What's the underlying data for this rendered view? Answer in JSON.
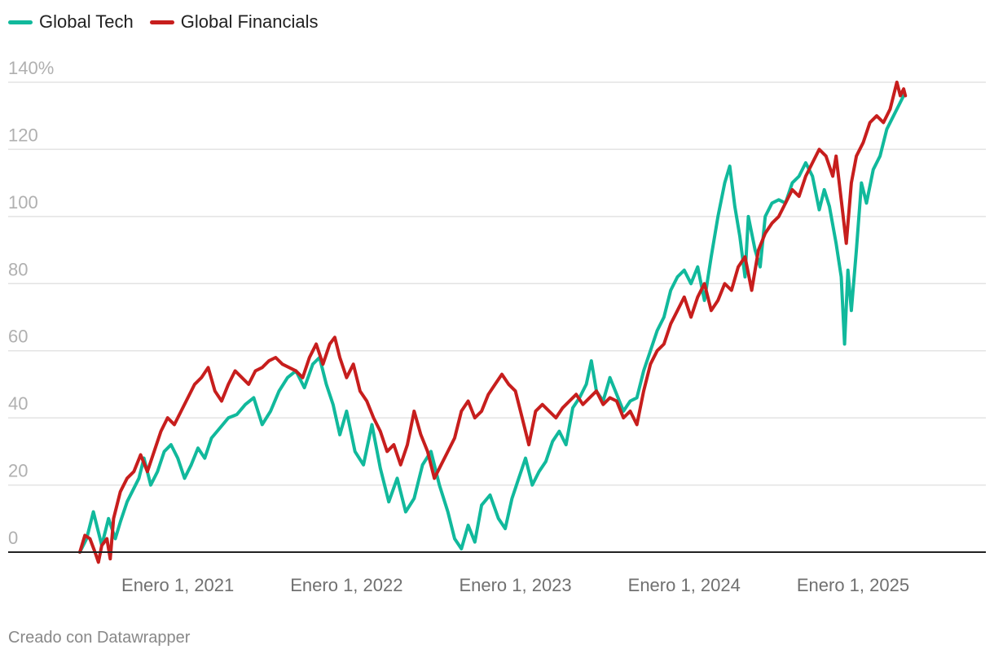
{
  "footer": {
    "credit": "Creado con Datawrapper"
  },
  "chart_data": {
    "type": "line",
    "title": "",
    "xlabel": "",
    "ylabel": "",
    "ylim": [
      0,
      140
    ],
    "y_ticks": [
      0,
      20,
      40,
      60,
      80,
      100,
      120,
      140
    ],
    "y_tick_labels": [
      "0",
      "20",
      "40",
      "60",
      "80",
      "100",
      "120",
      "140%"
    ],
    "x_domain": [
      2020.42,
      2025.7
    ],
    "x_ticks": [
      2021.0,
      2022.0,
      2023.0,
      2024.0,
      2025.0
    ],
    "x_tick_labels": [
      "Enero 1, 2021",
      "Enero 1, 2022",
      "Enero 1, 2023",
      "Enero 1, 2024",
      "Enero 1, 2025"
    ],
    "legend_position": "top-left",
    "grid": true,
    "series": [
      {
        "name": "Global Tech",
        "color": "#11b99c",
        "points": [
          [
            2020.42,
            0
          ],
          [
            2020.46,
            4
          ],
          [
            2020.5,
            12
          ],
          [
            2020.53,
            6
          ],
          [
            2020.55,
            2
          ],
          [
            2020.59,
            10
          ],
          [
            2020.63,
            4
          ],
          [
            2020.66,
            9
          ],
          [
            2020.7,
            15
          ],
          [
            2020.73,
            18
          ],
          [
            2020.77,
            22
          ],
          [
            2020.8,
            28
          ],
          [
            2020.84,
            20
          ],
          [
            2020.88,
            24
          ],
          [
            2020.92,
            30
          ],
          [
            2020.96,
            32
          ],
          [
            2021.0,
            28
          ],
          [
            2021.04,
            22
          ],
          [
            2021.08,
            26
          ],
          [
            2021.12,
            31
          ],
          [
            2021.16,
            28
          ],
          [
            2021.2,
            34
          ],
          [
            2021.25,
            37
          ],
          [
            2021.3,
            40
          ],
          [
            2021.35,
            41
          ],
          [
            2021.4,
            44
          ],
          [
            2021.45,
            46
          ],
          [
            2021.5,
            38
          ],
          [
            2021.55,
            42
          ],
          [
            2021.6,
            48
          ],
          [
            2021.65,
            52
          ],
          [
            2021.7,
            54
          ],
          [
            2021.75,
            49
          ],
          [
            2021.8,
            56
          ],
          [
            2021.84,
            58
          ],
          [
            2021.88,
            50
          ],
          [
            2021.92,
            44
          ],
          [
            2021.96,
            35
          ],
          [
            2022.0,
            42
          ],
          [
            2022.05,
            30
          ],
          [
            2022.1,
            26
          ],
          [
            2022.15,
            38
          ],
          [
            2022.2,
            25
          ],
          [
            2022.25,
            15
          ],
          [
            2022.3,
            22
          ],
          [
            2022.35,
            12
          ],
          [
            2022.4,
            16
          ],
          [
            2022.45,
            26
          ],
          [
            2022.5,
            30
          ],
          [
            2022.55,
            20
          ],
          [
            2022.6,
            12
          ],
          [
            2022.64,
            4
          ],
          [
            2022.68,
            1
          ],
          [
            2022.72,
            8
          ],
          [
            2022.76,
            3
          ],
          [
            2022.8,
            14
          ],
          [
            2022.85,
            17
          ],
          [
            2022.9,
            10
          ],
          [
            2022.94,
            7
          ],
          [
            2022.98,
            16
          ],
          [
            2023.02,
            22
          ],
          [
            2023.06,
            28
          ],
          [
            2023.1,
            20
          ],
          [
            2023.14,
            24
          ],
          [
            2023.18,
            27
          ],
          [
            2023.22,
            33
          ],
          [
            2023.26,
            36
          ],
          [
            2023.3,
            32
          ],
          [
            2023.34,
            43
          ],
          [
            2023.38,
            46
          ],
          [
            2023.42,
            50
          ],
          [
            2023.45,
            57
          ],
          [
            2023.48,
            48
          ],
          [
            2023.52,
            45
          ],
          [
            2023.56,
            52
          ],
          [
            2023.6,
            47
          ],
          [
            2023.64,
            42
          ],
          [
            2023.68,
            45
          ],
          [
            2023.72,
            46
          ],
          [
            2023.76,
            54
          ],
          [
            2023.8,
            60
          ],
          [
            2023.84,
            66
          ],
          [
            2023.88,
            70
          ],
          [
            2023.92,
            78
          ],
          [
            2023.96,
            82
          ],
          [
            2024.0,
            84
          ],
          [
            2024.04,
            80
          ],
          [
            2024.08,
            85
          ],
          [
            2024.12,
            75
          ],
          [
            2024.16,
            88
          ],
          [
            2024.2,
            100
          ],
          [
            2024.24,
            110
          ],
          [
            2024.27,
            115
          ],
          [
            2024.3,
            103
          ],
          [
            2024.33,
            94
          ],
          [
            2024.36,
            82
          ],
          [
            2024.38,
            100
          ],
          [
            2024.42,
            90
          ],
          [
            2024.45,
            85
          ],
          [
            2024.48,
            100
          ],
          [
            2024.52,
            104
          ],
          [
            2024.56,
            105
          ],
          [
            2024.6,
            104
          ],
          [
            2024.64,
            110
          ],
          [
            2024.68,
            112
          ],
          [
            2024.72,
            116
          ],
          [
            2024.76,
            112
          ],
          [
            2024.8,
            102
          ],
          [
            2024.83,
            108
          ],
          [
            2024.86,
            103
          ],
          [
            2024.9,
            92
          ],
          [
            2024.93,
            82
          ],
          [
            2024.95,
            62
          ],
          [
            2024.97,
            84
          ],
          [
            2024.99,
            72
          ],
          [
            2025.02,
            90
          ],
          [
            2025.05,
            110
          ],
          [
            2025.08,
            104
          ],
          [
            2025.12,
            114
          ],
          [
            2025.16,
            118
          ],
          [
            2025.2,
            126
          ],
          [
            2025.24,
            130
          ],
          [
            2025.28,
            134
          ],
          [
            2025.3,
            136
          ]
        ]
      },
      {
        "name": "Global Financials",
        "color": "#c71e1d",
        "points": [
          [
            2020.42,
            0
          ],
          [
            2020.45,
            5
          ],
          [
            2020.48,
            4
          ],
          [
            2020.51,
            0
          ],
          [
            2020.53,
            -3
          ],
          [
            2020.55,
            2
          ],
          [
            2020.58,
            4
          ],
          [
            2020.6,
            -2
          ],
          [
            2020.62,
            10
          ],
          [
            2020.66,
            18
          ],
          [
            2020.7,
            22
          ],
          [
            2020.74,
            24
          ],
          [
            2020.78,
            29
          ],
          [
            2020.82,
            24
          ],
          [
            2020.86,
            30
          ],
          [
            2020.9,
            36
          ],
          [
            2020.94,
            40
          ],
          [
            2020.98,
            38
          ],
          [
            2021.02,
            42
          ],
          [
            2021.06,
            46
          ],
          [
            2021.1,
            50
          ],
          [
            2021.14,
            52
          ],
          [
            2021.18,
            55
          ],
          [
            2021.22,
            48
          ],
          [
            2021.26,
            45
          ],
          [
            2021.3,
            50
          ],
          [
            2021.34,
            54
          ],
          [
            2021.38,
            52
          ],
          [
            2021.42,
            50
          ],
          [
            2021.46,
            54
          ],
          [
            2021.5,
            55
          ],
          [
            2021.54,
            57
          ],
          [
            2021.58,
            58
          ],
          [
            2021.62,
            56
          ],
          [
            2021.66,
            55
          ],
          [
            2021.7,
            54
          ],
          [
            2021.74,
            52
          ],
          [
            2021.78,
            58
          ],
          [
            2021.82,
            62
          ],
          [
            2021.86,
            56
          ],
          [
            2021.9,
            62
          ],
          [
            2021.93,
            64
          ],
          [
            2021.96,
            58
          ],
          [
            2022.0,
            52
          ],
          [
            2022.04,
            56
          ],
          [
            2022.08,
            48
          ],
          [
            2022.12,
            45
          ],
          [
            2022.16,
            40
          ],
          [
            2022.2,
            36
          ],
          [
            2022.24,
            30
          ],
          [
            2022.28,
            32
          ],
          [
            2022.32,
            26
          ],
          [
            2022.36,
            32
          ],
          [
            2022.4,
            42
          ],
          [
            2022.44,
            35
          ],
          [
            2022.48,
            30
          ],
          [
            2022.52,
            22
          ],
          [
            2022.56,
            26
          ],
          [
            2022.6,
            30
          ],
          [
            2022.64,
            34
          ],
          [
            2022.68,
            42
          ],
          [
            2022.72,
            45
          ],
          [
            2022.76,
            40
          ],
          [
            2022.8,
            42
          ],
          [
            2022.84,
            47
          ],
          [
            2022.88,
            50
          ],
          [
            2022.92,
            53
          ],
          [
            2022.96,
            50
          ],
          [
            2023.0,
            48
          ],
          [
            2023.04,
            40
          ],
          [
            2023.08,
            32
          ],
          [
            2023.12,
            42
          ],
          [
            2023.16,
            44
          ],
          [
            2023.2,
            42
          ],
          [
            2023.24,
            40
          ],
          [
            2023.28,
            43
          ],
          [
            2023.32,
            45
          ],
          [
            2023.36,
            47
          ],
          [
            2023.4,
            44
          ],
          [
            2023.44,
            46
          ],
          [
            2023.48,
            48
          ],
          [
            2023.52,
            44
          ],
          [
            2023.56,
            46
          ],
          [
            2023.6,
            45
          ],
          [
            2023.64,
            40
          ],
          [
            2023.68,
            42
          ],
          [
            2023.72,
            38
          ],
          [
            2023.76,
            48
          ],
          [
            2023.8,
            56
          ],
          [
            2023.84,
            60
          ],
          [
            2023.88,
            62
          ],
          [
            2023.92,
            68
          ],
          [
            2023.96,
            72
          ],
          [
            2024.0,
            76
          ],
          [
            2024.04,
            70
          ],
          [
            2024.08,
            76
          ],
          [
            2024.12,
            80
          ],
          [
            2024.16,
            72
          ],
          [
            2024.2,
            75
          ],
          [
            2024.24,
            80
          ],
          [
            2024.28,
            78
          ],
          [
            2024.32,
            85
          ],
          [
            2024.36,
            88
          ],
          [
            2024.4,
            78
          ],
          [
            2024.44,
            90
          ],
          [
            2024.48,
            95
          ],
          [
            2024.52,
            98
          ],
          [
            2024.56,
            100
          ],
          [
            2024.6,
            104
          ],
          [
            2024.64,
            108
          ],
          [
            2024.68,
            106
          ],
          [
            2024.72,
            112
          ],
          [
            2024.76,
            116
          ],
          [
            2024.8,
            120
          ],
          [
            2024.84,
            118
          ],
          [
            2024.88,
            112
          ],
          [
            2024.9,
            118
          ],
          [
            2024.93,
            105
          ],
          [
            2024.96,
            92
          ],
          [
            2024.99,
            110
          ],
          [
            2025.02,
            118
          ],
          [
            2025.06,
            122
          ],
          [
            2025.1,
            128
          ],
          [
            2025.14,
            130
          ],
          [
            2025.18,
            128
          ],
          [
            2025.22,
            132
          ],
          [
            2025.26,
            140
          ],
          [
            2025.28,
            136
          ],
          [
            2025.3,
            138
          ],
          [
            2025.31,
            136
          ]
        ]
      }
    ]
  }
}
